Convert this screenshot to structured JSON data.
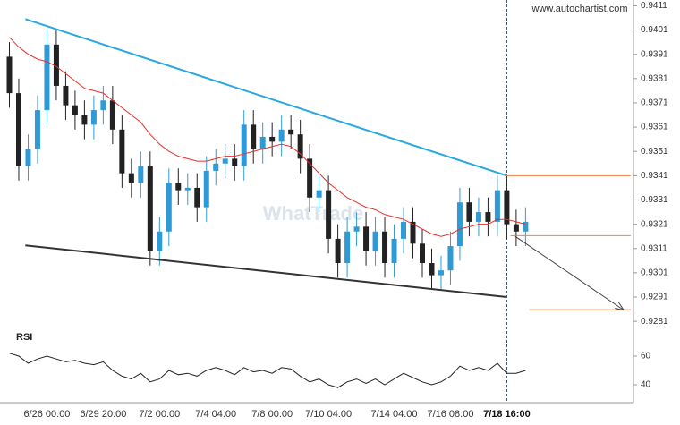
{
  "chart_data": [
    {
      "type": "candlestick",
      "source": "www.autochartist.com",
      "watermark": "WhatTrade",
      "categories": [
        null,
        null,
        null,
        null,
        "6/26 00:00",
        null,
        null,
        null,
        null,
        null,
        "6/29 20:00",
        null,
        null,
        null,
        null,
        null,
        "7/2 00:00",
        null,
        null,
        null,
        null,
        null,
        "7/4 04:00",
        null,
        null,
        null,
        null,
        null,
        "7/8 00:00",
        null,
        null,
        null,
        null,
        null,
        "7/10 04:00",
        null,
        null,
        null,
        null,
        null,
        null,
        "7/14 04:00",
        null,
        null,
        null,
        null,
        null,
        "7/16 08:00",
        null,
        null,
        null,
        null,
        null,
        "7/18 16:00",
        null,
        null
      ],
      "open": [
        0.939,
        0.9375,
        0.9345,
        0.9352,
        0.9368,
        0.9395,
        0.9378,
        0.937,
        0.9366,
        0.9362,
        0.9368,
        0.9372,
        0.936,
        0.9342,
        0.9338,
        0.9345,
        0.931,
        0.9318,
        0.9338,
        0.9335,
        0.9336,
        0.9328,
        0.9343,
        0.9346,
        0.9348,
        0.9345,
        0.9362,
        0.9352,
        0.9357,
        0.9355,
        0.936,
        0.9358,
        0.9348,
        0.9332,
        0.9335,
        0.9315,
        0.9305,
        0.9318,
        0.932,
        0.931,
        0.9318,
        0.9305,
        0.9315,
        0.9322,
        0.9313,
        0.9305,
        0.93,
        0.9302,
        0.9312,
        0.933,
        0.9322,
        0.9326,
        0.9322,
        0.9335,
        0.9321,
        0.9318
      ],
      "high": [
        0.9396,
        0.9381,
        0.9358,
        0.9374,
        0.9401,
        0.9401,
        0.9384,
        0.9376,
        0.9372,
        0.9374,
        0.9378,
        0.9378,
        0.9366,
        0.9348,
        0.9351,
        0.9351,
        0.9324,
        0.9344,
        0.9344,
        0.9342,
        0.9342,
        0.9349,
        0.9352,
        0.9354,
        0.9354,
        0.9368,
        0.9368,
        0.9363,
        0.9363,
        0.9366,
        0.9366,
        0.9364,
        0.9354,
        0.9341,
        0.9341,
        0.9321,
        0.9324,
        0.9326,
        0.9326,
        0.9324,
        0.9324,
        0.9321,
        0.9328,
        0.9328,
        0.9319,
        0.9311,
        0.9308,
        0.9318,
        0.9336,
        0.9336,
        0.9332,
        0.9332,
        0.9341,
        0.9341,
        0.9327,
        0.9328
      ],
      "low": [
        0.9369,
        0.9339,
        0.9339,
        0.9346,
        0.9362,
        0.9372,
        0.9364,
        0.936,
        0.9356,
        0.9356,
        0.9362,
        0.9354,
        0.9336,
        0.9332,
        0.9332,
        0.9304,
        0.9304,
        0.9312,
        0.9329,
        0.9329,
        0.9322,
        0.9322,
        0.9337,
        0.934,
        0.9339,
        0.9339,
        0.9346,
        0.9346,
        0.9349,
        0.9349,
        0.9352,
        0.9342,
        0.9326,
        0.9326,
        0.9309,
        0.9299,
        0.9299,
        0.9312,
        0.9304,
        0.9304,
        0.9299,
        0.9299,
        0.9309,
        0.9307,
        0.9299,
        0.9294,
        0.9294,
        0.9296,
        0.9306,
        0.9316,
        0.9316,
        0.9316,
        0.9316,
        0.9315,
        0.9312,
        0.9312
      ],
      "close": [
        0.9375,
        0.9345,
        0.9352,
        0.9368,
        0.9395,
        0.9378,
        0.937,
        0.9366,
        0.9362,
        0.9368,
        0.9372,
        0.936,
        0.9342,
        0.9338,
        0.9345,
        0.931,
        0.9318,
        0.9338,
        0.9335,
        0.9336,
        0.9328,
        0.9343,
        0.9346,
        0.9348,
        0.9345,
        0.9362,
        0.9352,
        0.9357,
        0.9355,
        0.936,
        0.9358,
        0.9348,
        0.9332,
        0.9335,
        0.9315,
        0.9305,
        0.9318,
        0.932,
        0.931,
        0.9318,
        0.9305,
        0.9315,
        0.9322,
        0.9313,
        0.9305,
        0.93,
        0.9302,
        0.9312,
        0.933,
        0.9322,
        0.9326,
        0.9322,
        0.9335,
        0.9321,
        0.9318,
        0.9322
      ],
      "up_color": "#2e9bd6",
      "down_color": "#222222",
      "moving_average": {
        "color": "#e8302a",
        "values": [
          0.9398,
          0.9394,
          0.9391,
          0.9389,
          0.9388,
          0.9386,
          0.9383,
          0.938,
          0.9377,
          0.9376,
          0.9375,
          0.9372,
          0.9369,
          0.9366,
          0.9363,
          0.9358,
          0.9354,
          0.9351,
          0.9349,
          0.9348,
          0.9347,
          0.9347,
          0.9348,
          0.9349,
          0.9349,
          0.935,
          0.9351,
          0.9352,
          0.9353,
          0.9354,
          0.9353,
          0.935,
          0.9346,
          0.9342,
          0.9338,
          0.9335,
          0.9332,
          0.933,
          0.9328,
          0.9327,
          0.9325,
          0.9324,
          0.9323,
          0.9321,
          0.9319,
          0.9317,
          0.9316,
          0.9317,
          0.9319,
          0.932,
          0.9321,
          0.9321,
          0.9323,
          0.9323,
          0.9322,
          0.9321
        ]
      },
      "trendlines": [
        {
          "color": "#29a8e0",
          "x": [
            1.7,
            53.0
          ],
          "y": [
            0.94055,
            0.9341
          ]
        },
        {
          "color": "#333333",
          "x": [
            1.7,
            53.0
          ],
          "y": [
            0.93123,
            0.9291
          ]
        }
      ],
      "levels": [
        {
          "color": "#f08040",
          "value": 0.9341,
          "x": [
            52.9,
            66.2
          ]
        },
        {
          "color": "#f08040",
          "value": 0.93163,
          "x": [
            53.4,
            66.2
          ]
        },
        {
          "color": "#f08040",
          "value": 0.92858,
          "x": [
            55.4,
            66.2
          ]
        }
      ],
      "forecast_arrow": {
        "color": "#444444",
        "x": [
          53.9,
          65.4
        ],
        "y": [
          0.9316,
          0.92858
        ]
      },
      "xlim": [
        -1,
        66.5
      ],
      "ylim": [
        0.9277,
        0.9413
      ],
      "yticks": [
        0.9411,
        0.9401,
        0.9391,
        0.9381,
        0.9371,
        0.9361,
        0.9351,
        0.9341,
        0.9331,
        0.9321,
        0.9311,
        0.9301,
        0.9291,
        0.9281
      ]
    },
    {
      "type": "line",
      "title": "RSI",
      "color": "#222222",
      "values": [
        62,
        60,
        55,
        58,
        60,
        58,
        56,
        57,
        55,
        54,
        56,
        50,
        46,
        44,
        48,
        42,
        44,
        50,
        47,
        48,
        46,
        50,
        52,
        50,
        47,
        52,
        49,
        50,
        48,
        52,
        51,
        46,
        42,
        44,
        40,
        38,
        42,
        44,
        41,
        44,
        40,
        44,
        48,
        45,
        42,
        40,
        42,
        46,
        53,
        50,
        52,
        50,
        55,
        48,
        48,
        50
      ],
      "xlim": [
        -1,
        66.5
      ],
      "ylim": [
        30,
        70
      ],
      "yticks": [
        60,
        40
      ]
    }
  ]
}
